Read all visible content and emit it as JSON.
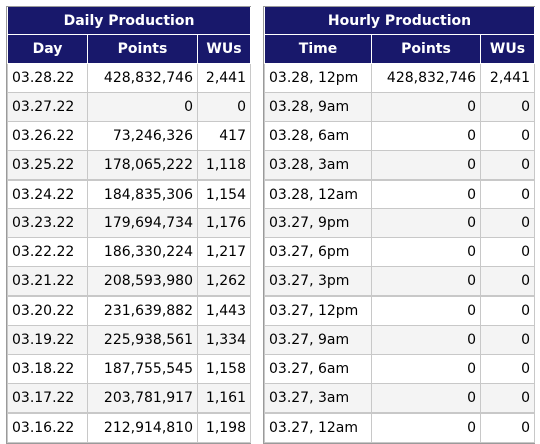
{
  "daily": {
    "title": "Daily Production",
    "headers": [
      "Day",
      "Points",
      "WUs"
    ],
    "rows": [
      [
        "03.28.22",
        "428,832,746",
        "2,441"
      ],
      [
        "03.27.22",
        "0",
        "0"
      ],
      [
        "03.26.22",
        "73,246,326",
        "417"
      ],
      [
        "03.25.22",
        "178,065,222",
        "1,118"
      ],
      [
        "03.24.22",
        "184,835,306",
        "1,154"
      ],
      [
        "03.23.22",
        "179,694,734",
        "1,176"
      ],
      [
        "03.22.22",
        "186,330,224",
        "1,217"
      ],
      [
        "03.21.22",
        "208,593,980",
        "1,262"
      ],
      [
        "03.20.22",
        "231,639,882",
        "1,443"
      ],
      [
        "03.19.22",
        "225,938,561",
        "1,334"
      ],
      [
        "03.18.22",
        "187,755,545",
        "1,158"
      ],
      [
        "03.17.22",
        "203,781,917",
        "1,161"
      ],
      [
        "03.16.22",
        "212,914,810",
        "1,198"
      ]
    ]
  },
  "hourly": {
    "title": "Hourly Production",
    "headers": [
      "Time",
      "Points",
      "WUs"
    ],
    "rows": [
      [
        "03.28, 12pm",
        "428,832,746",
        "2,441"
      ],
      [
        "03.28, 9am",
        "0",
        "0"
      ],
      [
        "03.28, 6am",
        "0",
        "0"
      ],
      [
        "03.28, 3am",
        "0",
        "0"
      ],
      [
        "03.28, 12am",
        "0",
        "0"
      ],
      [
        "03.27, 9pm",
        "0",
        "0"
      ],
      [
        "03.27, 6pm",
        "0",
        "0"
      ],
      [
        "03.27, 3pm",
        "0",
        "0"
      ],
      [
        "03.27, 12pm",
        "0",
        "0"
      ],
      [
        "03.27, 9am",
        "0",
        "0"
      ],
      [
        "03.27, 6am",
        "0",
        "0"
      ],
      [
        "03.27, 3am",
        "0",
        "0"
      ],
      [
        "03.27, 12am",
        "0",
        "0"
      ]
    ]
  }
}
